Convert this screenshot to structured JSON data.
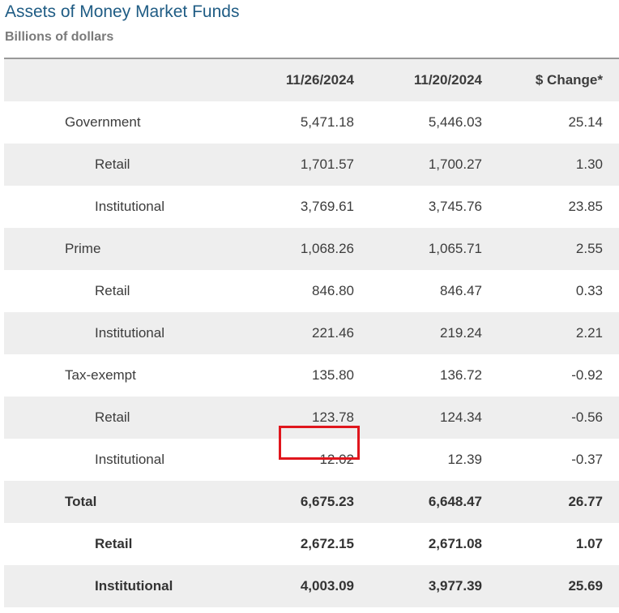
{
  "title": "Assets of Money Market Funds",
  "subtitle": "Billions of dollars",
  "columns": [
    "",
    "11/26/2024",
    "11/20/2024",
    "$ Change*"
  ],
  "rows": [
    {
      "label": "Government",
      "c1": "5,471.18",
      "c2": "5,446.03",
      "c3": "25.14"
    },
    {
      "label": "Retail",
      "c1": "1,701.57",
      "c2": "1,700.27",
      "c3": "1.30"
    },
    {
      "label": "Institutional",
      "c1": "3,769.61",
      "c2": "3,745.76",
      "c3": "23.85"
    },
    {
      "label": "Prime",
      "c1": "1,068.26",
      "c2": "1,065.71",
      "c3": "2.55"
    },
    {
      "label": "Retail",
      "c1": "846.80",
      "c2": "846.47",
      "c3": "0.33"
    },
    {
      "label": "Institutional",
      "c1": "221.46",
      "c2": "219.24",
      "c3": "2.21"
    },
    {
      "label": "Tax-exempt",
      "c1": "135.80",
      "c2": "136.72",
      "c3": "-0.92"
    },
    {
      "label": "Retail",
      "c1": "123.78",
      "c2": "124.34",
      "c3": "-0.56"
    },
    {
      "label": "Institutional",
      "c1": "12.02",
      "c2": "12.39",
      "c3": "-0.37"
    },
    {
      "label": "Total",
      "c1": "6,675.23",
      "c2": "6,648.47",
      "c3": "26.77"
    },
    {
      "label": "Retail",
      "c1": "2,672.15",
      "c2": "2,671.08",
      "c3": "1.07"
    },
    {
      "label": "Institutional",
      "c1": "4,003.09",
      "c2": "3,977.39",
      "c3": "25.69"
    }
  ],
  "highlight_color": "#e0161d"
}
